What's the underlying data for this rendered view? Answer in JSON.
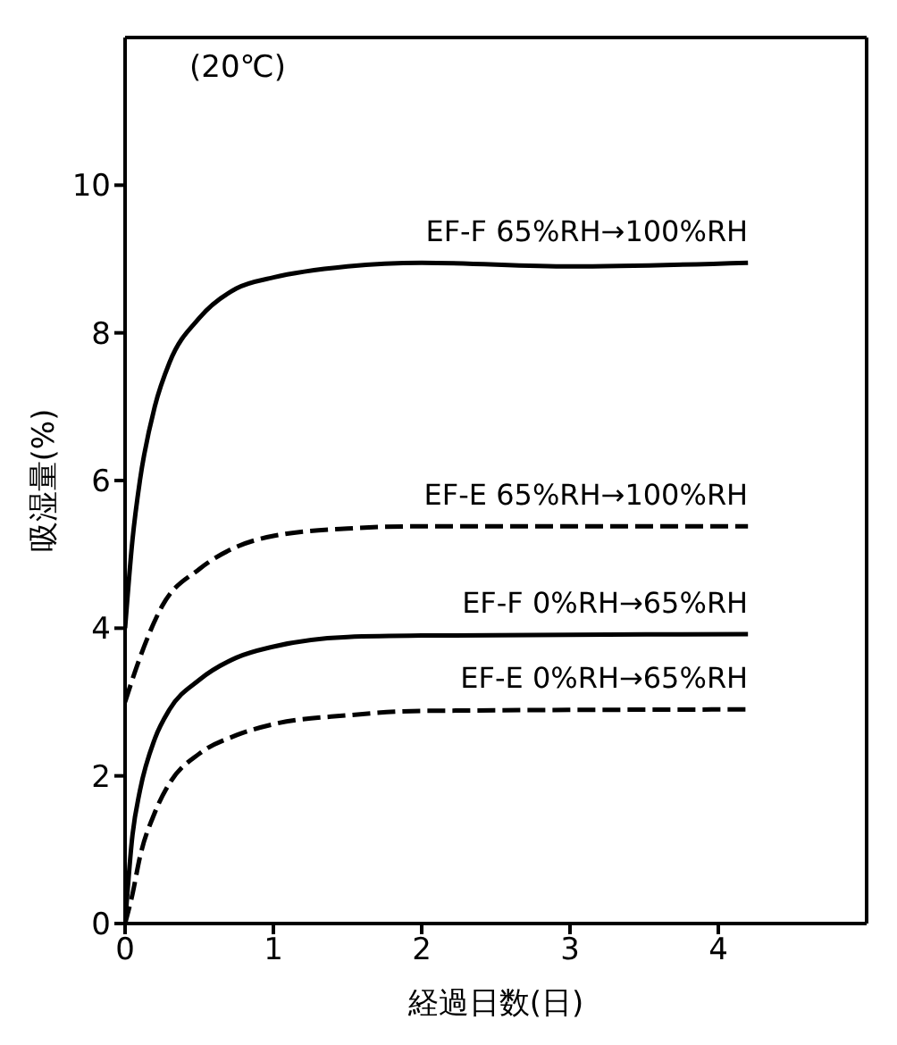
{
  "chart_data": {
    "type": "line",
    "xlabel": "経過日数(日)",
    "ylabel": "吸湿量(%)",
    "annotations": [
      "(20℃)"
    ],
    "xlim": [
      0,
      5
    ],
    "xticks": [
      0,
      1,
      2,
      3,
      4
    ],
    "ylim": [
      0,
      12
    ],
    "yticks": [
      0,
      2,
      4,
      6,
      8,
      10
    ],
    "grid": false,
    "legend": false,
    "marker": "none",
    "series": [
      {
        "name": "EF-F 65%RH→100%RH",
        "color": "#000000",
        "line_style": "solid",
        "x": [
          0,
          0.05,
          0.1,
          0.2,
          0.3,
          0.5,
          0.75,
          1,
          1.5,
          2,
          3,
          4.2
        ],
        "values": [
          4.0,
          5.2,
          6.0,
          7.0,
          7.6,
          8.2,
          8.6,
          8.75,
          8.9,
          8.95,
          8.9,
          8.95
        ]
      },
      {
        "name": "EF-E 65%RH→100%RH",
        "color": "#000000",
        "line_style": "dashed",
        "x": [
          0,
          0.1,
          0.25,
          0.5,
          0.75,
          1,
          1.5,
          2,
          4.2
        ],
        "values": [
          3.0,
          3.6,
          4.3,
          4.8,
          5.1,
          5.25,
          5.35,
          5.38,
          5.38
        ]
      },
      {
        "name": "EF-F 0%RH→65%RH",
        "color": "#000000",
        "line_style": "solid",
        "x": [
          0,
          0.05,
          0.1,
          0.2,
          0.3,
          0.5,
          0.75,
          1,
          1.5,
          2,
          4.2
        ],
        "values": [
          0,
          1.2,
          1.8,
          2.5,
          2.9,
          3.3,
          3.6,
          3.75,
          3.88,
          3.9,
          3.92
        ]
      },
      {
        "name": "EF-E 0%RH→65%RH",
        "color": "#000000",
        "line_style": "dashed",
        "x": [
          0,
          0.05,
          0.1,
          0.2,
          0.3,
          0.5,
          0.75,
          1,
          1.5,
          2,
          4.2
        ],
        "values": [
          0,
          0.4,
          0.9,
          1.5,
          1.9,
          2.3,
          2.55,
          2.7,
          2.82,
          2.88,
          2.9
        ]
      }
    ]
  }
}
